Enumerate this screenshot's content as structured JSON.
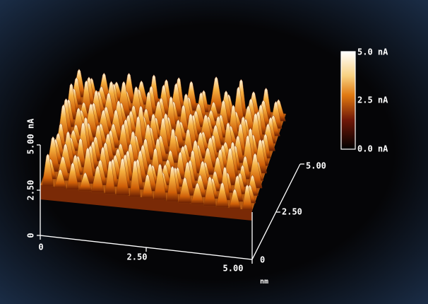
{
  "z_axis": {
    "ticks": [
      "0",
      "2.50",
      "5.00 nA"
    ]
  },
  "x_axis": {
    "ticks": [
      "0",
      "2.50",
      "5.00"
    ],
    "unit": "nm"
  },
  "y_axis": {
    "ticks": [
      "0",
      "2.50",
      "5.00"
    ]
  },
  "colorbar": {
    "labels": [
      "5.0 nA",
      "2.5 nA",
      "0.0 nA"
    ]
  }
}
